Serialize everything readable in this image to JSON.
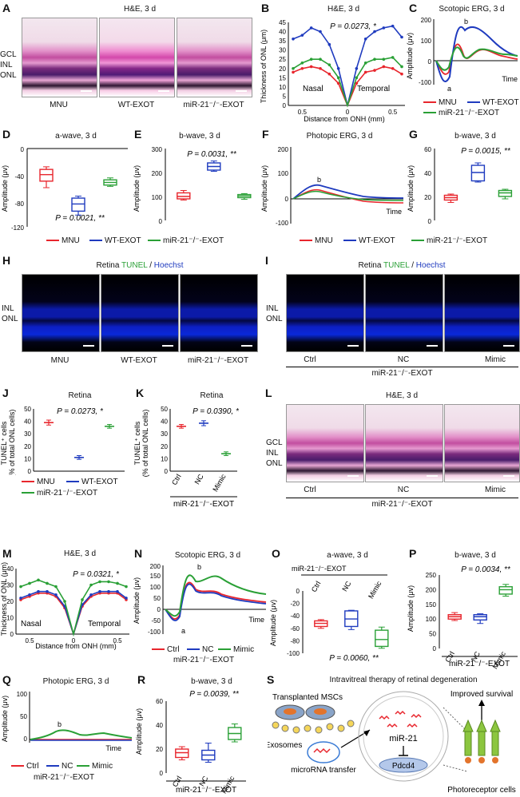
{
  "panels": {
    "A": {
      "letter": "A",
      "title": "H&E, 3 d",
      "side": [
        "GCL",
        "INL",
        "ONL"
      ],
      "captions": [
        "MNU",
        "WT-EXOT",
        "miR-21⁻/⁻-EXOT"
      ]
    },
    "B": {
      "letter": "B",
      "title": "H&E, 3 d",
      "pval": "P = 0.0273, *",
      "ylabel": "Thickness of ONL (μm)",
      "xlabel": "Distance from ONH (mm)",
      "nasal": "Nasal",
      "temporal": "Temporal",
      "yticks": [
        "0",
        "5",
        "10",
        "15",
        "20",
        "25",
        "30",
        "35",
        "40",
        "45"
      ],
      "xticks": [
        "0.5",
        "0",
        "0.5"
      ]
    },
    "C": {
      "letter": "C",
      "title": "Scotopic ERG, 3 d",
      "ylabel": "Amplitude (μv)",
      "time": "Time",
      "a": "a",
      "b": "b",
      "yticks": [
        "200",
        "100",
        "0",
        "-100"
      ]
    },
    "legend1": {
      "items": [
        "MNU",
        "WT-EXOT",
        "miR-21⁻/⁻-EXOT"
      ]
    },
    "D": {
      "letter": "D",
      "title": "a-wave, 3 d",
      "pval": "P = 0.0021, **",
      "ylabel": "Amplitude (μv)",
      "yticks": [
        "0",
        "-40",
        "-80",
        "-120"
      ]
    },
    "E": {
      "letter": "E",
      "title": "b-wave, 3 d",
      "pval": "P = 0.0031, **",
      "ylabel": "Amplitude (μv)",
      "yticks": [
        "300",
        "200",
        "100",
        "0"
      ]
    },
    "F": {
      "letter": "F",
      "title": "Photopic ERG, 3 d",
      "ylabel": "Amplitude (μv)",
      "time": "Time",
      "b": "b",
      "yticks": [
        "200",
        "100",
        "0",
        "-100"
      ]
    },
    "G": {
      "letter": "G",
      "title": "b-wave, 3 d",
      "pval": "P = 0.0015, **",
      "ylabel": "Amplitude (μv)",
      "yticks": [
        "60",
        "40",
        "20",
        "0"
      ]
    },
    "H": {
      "letter": "H",
      "title_a": "Retina ",
      "title_b": "TUNEL",
      "title_c": " / ",
      "title_d": "Hoechst",
      "side": [
        "INL",
        "ONL"
      ],
      "captions": [
        "MNU",
        "WT-EXOT",
        "miR-21⁻/⁻-EXOT"
      ]
    },
    "I": {
      "letter": "I",
      "title_a": "Retina ",
      "title_b": "TUNEL",
      "title_c": " / ",
      "title_d": "Hoechst",
      "side": [
        "INL",
        "ONL"
      ],
      "captions": [
        "Ctrl",
        "NC",
        "Mimic"
      ],
      "group": "miR-21⁻/⁻-EXOT"
    },
    "J": {
      "letter": "J",
      "title": "Retina",
      "pval": "P = 0.0273, *",
      "ylabel1": "TUNEL⁺ cells",
      "ylabel2": "(% of total ONL cells)",
      "yticks": [
        "50",
        "40",
        "30",
        "20",
        "10",
        "0"
      ],
      "legend": [
        "MNU",
        "WT-EXOT",
        "miR-21⁻/⁻-EXOT"
      ]
    },
    "K": {
      "letter": "K",
      "title": "Retina",
      "pval": "P = 0.0390, *",
      "ylabel1": "TUNEL⁺ cells",
      "ylabel2": "(% of total ONL cells)",
      "yticks": [
        "50",
        "40",
        "30",
        "20",
        "10",
        "0"
      ],
      "xticks": [
        "Ctrl",
        "NC",
        "Mimic"
      ],
      "group": "miR-21⁻/⁻-EXOT"
    },
    "L": {
      "letter": "L",
      "title": "H&E, 3 d",
      "side": [
        "GCL",
        "INL",
        "ONL"
      ],
      "captions": [
        "Ctrl",
        "NC",
        "Mimic"
      ],
      "group": "miR-21⁻/⁻-EXOT"
    },
    "M": {
      "letter": "M",
      "title": "H&E, 3 d",
      "pval": "P = 0.0321, *",
      "ylabel": "Thickness of ONL (μm)",
      "xlabel": "Distance from ONH (mm)",
      "nasal": "Nasal",
      "temporal": "Temporal",
      "yticks": [
        "40",
        "30",
        "20",
        "10",
        "0"
      ],
      "xticks": [
        "0.5",
        "0",
        "0.5"
      ]
    },
    "N": {
      "letter": "N",
      "title": "Scotopic ERG, 3 d",
      "ylabel": "Amplitude (μv)",
      "time": "Time",
      "a": "a",
      "b": "b",
      "yticks": [
        "200",
        "150",
        "100",
        "50",
        "0",
        "-50",
        "-100"
      ],
      "legend": [
        "Ctrl",
        "NC",
        "Mimic"
      ],
      "group": "miR-21⁻/⁻-EXOT"
    },
    "O": {
      "letter": "O",
      "title": "a-wave, 3 d",
      "pval": "P = 0.0060, **",
      "ylabel": "Amplitude (μv)",
      "group": "miR-21⁻/⁻-EXOT",
      "xticks": [
        "Ctrl",
        "NC",
        "Mimic"
      ],
      "yticks": [
        "0",
        "-20",
        "-40",
        "-60",
        "-80",
        "-100"
      ]
    },
    "P": {
      "letter": "P",
      "title": "b-wave, 3 d",
      "pval": "P = 0.0034, **",
      "ylabel": "Amplitude (μv)",
      "xticks": [
        "Ctrl",
        "NC",
        "Mimic"
      ],
      "group": "miR-21⁻/⁻-EXOT",
      "yticks": [
        "250",
        "200",
        "150",
        "100",
        "50",
        "0"
      ]
    },
    "Q": {
      "letter": "Q",
      "title": "Photopic ERG, 3 d",
      "ylabel": "Amplitude (μv)",
      "time": "Time",
      "b": "b",
      "yticks": [
        "100",
        "50",
        "0"
      ],
      "legend": [
        "Ctrl",
        "NC",
        "Mimic"
      ],
      "group": "miR-21⁻/⁻-EXOT"
    },
    "R": {
      "letter": "R",
      "title": "b-wave, 3 d",
      "pval": "P = 0.0039, **",
      "ylabel": "Amplitude (μv)",
      "xticks": [
        "Ctrl",
        "NC",
        "Mimic"
      ],
      "group": "miR-21⁻/⁻-EXOT",
      "yticks": [
        "60",
        "40",
        "20",
        "0"
      ]
    },
    "S": {
      "letter": "S",
      "title": "Intravitreal therapy of retinal degeneration",
      "msc": "Transplanted MSCs",
      "exo": "Exosomes",
      "transfer": "microRNA transfer",
      "mir": "miR-21",
      "pdcd4": "Pdcd4",
      "improved": "Improved survival",
      "photo": "Photoreceptor cells"
    }
  },
  "colors": {
    "red": "#e8262d",
    "blue": "#1f3bbf",
    "green": "#2aa036"
  },
  "chart_data": [
    {
      "panel": "B",
      "type": "line",
      "x": [
        -0.6,
        -0.5,
        -0.4,
        -0.3,
        -0.2,
        -0.1,
        0,
        0.1,
        0.2,
        0.3,
        0.4,
        0.5,
        0.6
      ],
      "xlabel": "Distance from ONH (mm)",
      "ylabel": "Thickness of ONL (μm)",
      "ylim": [
        0,
        45
      ],
      "series": [
        {
          "name": "MNU",
          "values": [
            18,
            20,
            21,
            20,
            17,
            12,
            0,
            12,
            18,
            19,
            21,
            20,
            17
          ]
        },
        {
          "name": "WT-EXOT",
          "values": [
            36,
            38,
            42,
            40,
            33,
            20,
            0,
            20,
            36,
            40,
            42,
            43,
            37
          ]
        },
        {
          "name": "miR-21⁻/⁻-EXOT",
          "values": [
            20,
            23,
            25,
            25,
            22,
            15,
            0,
            15,
            23,
            25,
            25,
            26,
            21
          ]
        }
      ]
    },
    {
      "panel": "D",
      "type": "box",
      "title": "a-wave, 3 d",
      "categories": [
        "MNU",
        "WT-EXOT",
        "miR-21⁻/⁻-EXOT"
      ],
      "ylim": [
        -120,
        0
      ],
      "series": [
        {
          "name": "MNU",
          "values": {
            "min": -60,
            "q1": -50,
            "median": -40,
            "q3": -32,
            "max": -28
          }
        },
        {
          "name": "WT-EXOT",
          "values": {
            "min": -102,
            "q1": -96,
            "median": -85,
            "q3": -76,
            "max": -73
          }
        },
        {
          "name": "miR-21⁻/⁻-EXOT",
          "values": {
            "min": -58,
            "q1": -56,
            "median": -52,
            "q3": -48,
            "max": -45
          }
        }
      ]
    },
    {
      "panel": "E",
      "type": "box",
      "title": "b-wave, 3 d",
      "ylim": [
        0,
        300
      ],
      "series": [
        {
          "name": "MNU",
          "values": {
            "min": 85,
            "q1": 90,
            "median": 100,
            "q3": 115,
            "max": 125
          }
        },
        {
          "name": "WT-EXOT",
          "values": {
            "min": 205,
            "q1": 210,
            "median": 225,
            "q3": 240,
            "max": 248
          }
        },
        {
          "name": "miR-21⁻/⁻-EXOT",
          "values": {
            "min": 88,
            "q1": 95,
            "median": 102,
            "q3": 108,
            "max": 112
          }
        }
      ]
    },
    {
      "panel": "G",
      "type": "box",
      "title": "b-wave, 3 d",
      "ylim": [
        0,
        60
      ],
      "series": [
        {
          "name": "MNU",
          "values": {
            "min": 15,
            "q1": 17,
            "median": 19,
            "q3": 21,
            "max": 22
          }
        },
        {
          "name": "WT-EXOT",
          "values": {
            "min": 32,
            "q1": 33,
            "median": 40,
            "q3": 46,
            "max": 48
          }
        },
        {
          "name": "miR-21⁻/⁻-EXOT",
          "values": {
            "min": 18,
            "q1": 20,
            "median": 23,
            "q3": 25,
            "max": 26
          }
        }
      ]
    },
    {
      "panel": "J",
      "type": "bar",
      "title": "Retina",
      "categories": [
        "MNU",
        "WT-EXOT",
        "miR-21⁻/⁻-EXOT"
      ],
      "values": [
        39,
        11,
        36
      ],
      "errors": [
        2,
        1.5,
        1.5
      ],
      "ylim": [
        0,
        50
      ]
    },
    {
      "panel": "K",
      "type": "bar",
      "title": "Retina",
      "categories": [
        "Ctrl",
        "NC",
        "Mimic"
      ],
      "values": [
        36,
        38.5,
        14
      ],
      "errors": [
        1.5,
        2,
        1.5
      ],
      "ylim": [
        0,
        50
      ]
    },
    {
      "panel": "M",
      "type": "line",
      "x": [
        -0.6,
        -0.5,
        -0.4,
        -0.3,
        -0.2,
        -0.1,
        0,
        0.1,
        0.2,
        0.3,
        0.4,
        0.5,
        0.6
      ],
      "ylim": [
        0,
        40
      ],
      "series": [
        {
          "name": "Ctrl",
          "values": [
            21,
            23,
            25,
            25,
            23,
            16,
            0,
            17,
            23,
            25,
            25,
            25,
            21
          ]
        },
        {
          "name": "NC",
          "values": [
            22,
            24,
            26,
            26,
            24,
            17,
            0,
            18,
            24,
            26,
            26,
            26,
            22
          ]
        },
        {
          "name": "Mimic",
          "values": [
            29,
            31,
            33,
            31,
            29,
            20,
            0,
            21,
            30,
            32,
            32,
            31,
            29
          ]
        }
      ]
    },
    {
      "panel": "O",
      "type": "box",
      "title": "a-wave, 3 d",
      "categories": [
        "Ctrl",
        "NC",
        "Mimic"
      ],
      "ylim": [
        -100,
        0
      ],
      "series": [
        {
          "name": "Ctrl",
          "values": {
            "min": -60,
            "q1": -57,
            "median": -52,
            "q3": -48,
            "max": -46
          }
        },
        {
          "name": "NC",
          "values": {
            "min": -62,
            "q1": -57,
            "median": -45,
            "q3": -32,
            "max": -31
          }
        },
        {
          "name": "Mimic",
          "values": {
            "min": -92,
            "q1": -89,
            "median": -78,
            "q3": -63,
            "max": -58
          }
        }
      ]
    },
    {
      "panel": "P",
      "type": "box",
      "title": "b-wave, 3 d",
      "categories": [
        "Ctrl",
        "NC",
        "Mimic"
      ],
      "ylim": [
        0,
        250
      ],
      "series": [
        {
          "name": "Ctrl",
          "values": {
            "min": 95,
            "q1": 100,
            "median": 108,
            "q3": 115,
            "max": 122
          }
        },
        {
          "name": "NC",
          "values": {
            "min": 85,
            "q1": 97,
            "median": 108,
            "q3": 115,
            "max": 118
          }
        },
        {
          "name": "Mimic",
          "values": {
            "min": 178,
            "q1": 185,
            "median": 200,
            "q3": 210,
            "max": 218
          }
        }
      ]
    },
    {
      "panel": "R",
      "type": "box",
      "title": "b-wave, 3 d",
      "categories": [
        "Ctrl",
        "NC",
        "Mimic"
      ],
      "ylim": [
        0,
        60
      ],
      "series": [
        {
          "name": "Ctrl",
          "values": {
            "min": 11,
            "q1": 13,
            "median": 17,
            "q3": 20,
            "max": 22
          }
        },
        {
          "name": "NC",
          "values": {
            "min": 9,
            "q1": 11,
            "median": 15,
            "q3": 19,
            "max": 25
          }
        },
        {
          "name": "Mimic",
          "values": {
            "min": 26,
            "q1": 28,
            "median": 33,
            "q3": 38,
            "max": 41
          }
        }
      ]
    }
  ]
}
